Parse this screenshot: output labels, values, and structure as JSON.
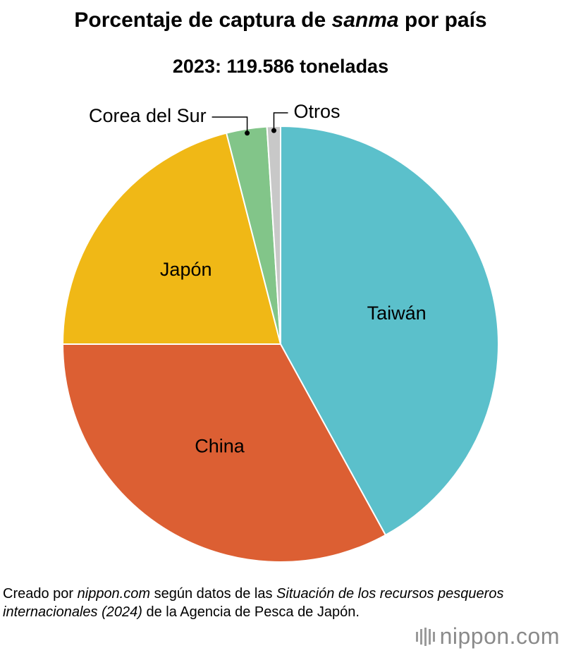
{
  "chart_data": {
    "type": "pie",
    "title": [
      {
        "text": "Porcentaje de captura de "
      },
      {
        "text": "sanma",
        "italic": true
      },
      {
        "text": " por país"
      }
    ],
    "subtitle": "2023: 119.586 toneladas",
    "categories": [
      "Taiwán",
      "China",
      "Japón",
      "Corea del Sur",
      "Otros"
    ],
    "values": [
      42,
      33,
      21,
      3,
      1
    ],
    "colors": [
      "#5bc0cb",
      "#dc5f33",
      "#f0b816",
      "#82c589",
      "#c8c8c8"
    ]
  },
  "footer": {
    "source": [
      {
        "text": "Creado por "
      },
      {
        "text": "nippon.com",
        "italic": true
      },
      {
        "text": " según datos de las "
      },
      {
        "text": "Situación de los recursos pesqueros internacionales (2024)",
        "italic": true
      },
      {
        "text": " de la Agencia de Pesca de Japón."
      }
    ],
    "logo": "nippon.com"
  }
}
